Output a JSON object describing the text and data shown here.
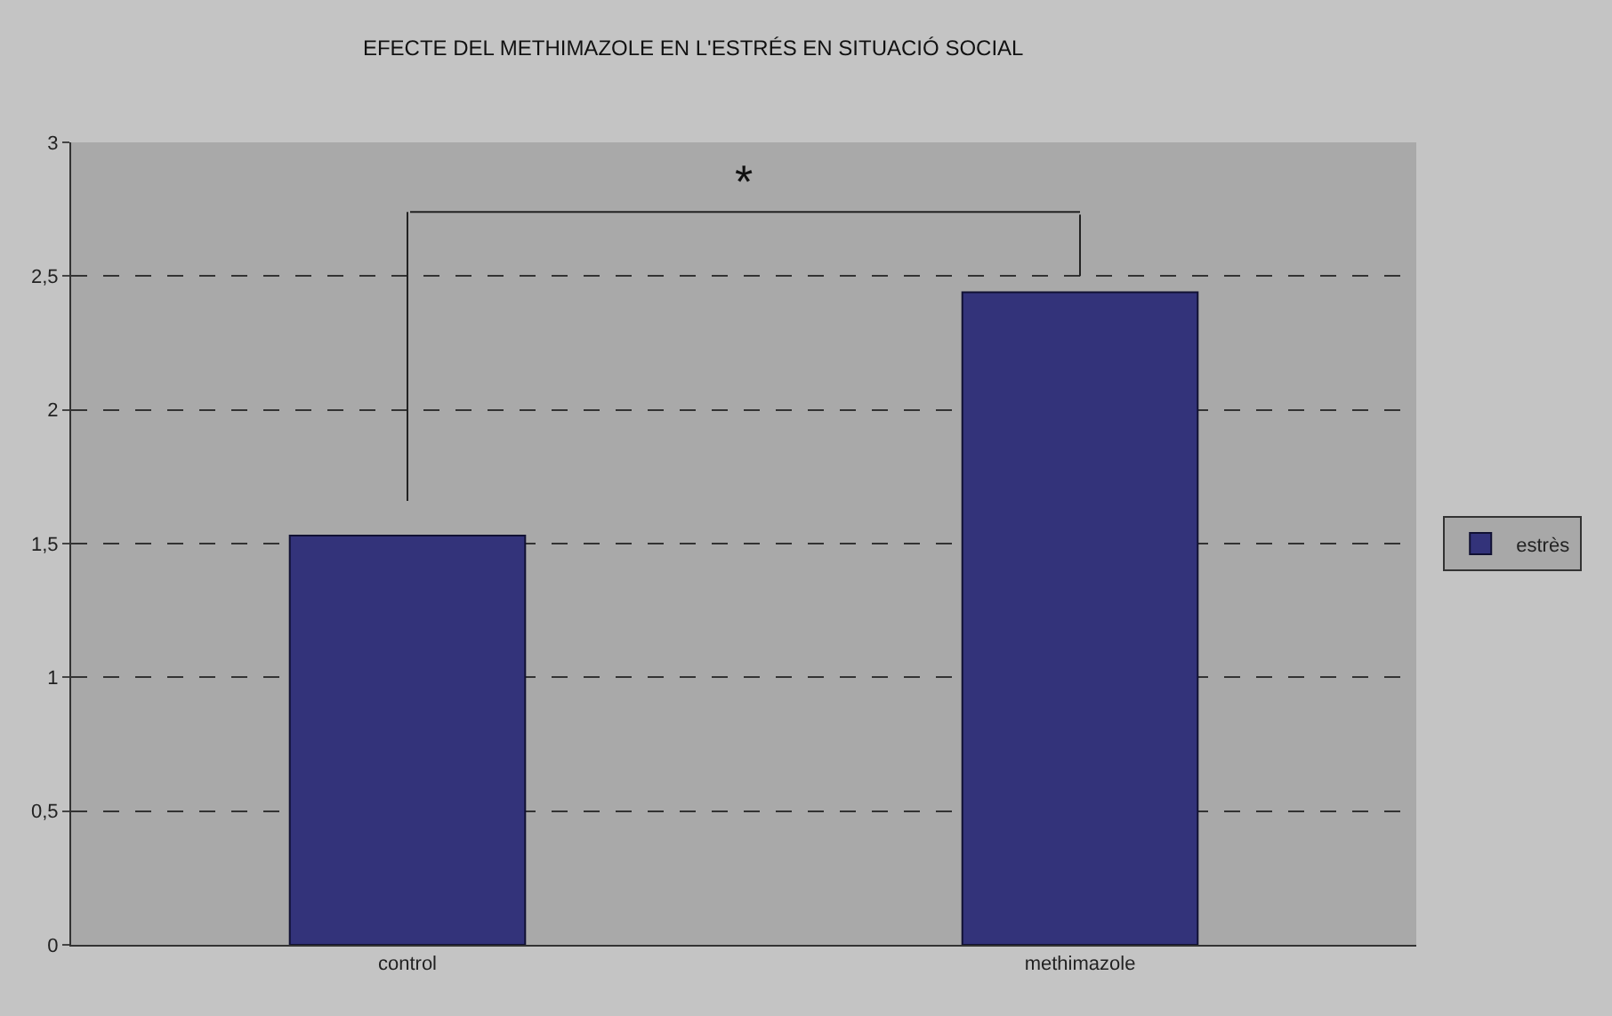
{
  "chart_data": {
    "type": "bar",
    "title": "EFECTE DEL METHIMAZOLE EN L'ESTRÉS EN SITUACIÓ SOCIAL",
    "categories": [
      "control",
      "methimazole"
    ],
    "series": [
      {
        "name": "estrès",
        "color": "#33337a",
        "values": [
          1.53,
          2.44
        ]
      }
    ],
    "ylim": [
      0,
      3
    ],
    "yticks": [
      0,
      {
        "value": 0.5,
        "label": "0,5"
      },
      1,
      {
        "value": 1.5,
        "label": "1,5"
      },
      2,
      {
        "value": 2.5,
        "label": "2,5"
      },
      3
    ],
    "grid": "y",
    "line_style": "dashed",
    "legend": "right",
    "annotations": [
      "*"
    ]
  }
}
